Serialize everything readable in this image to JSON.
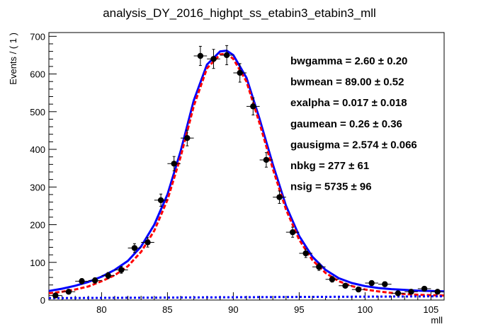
{
  "chart_data": {
    "type": "scatter",
    "title": "analysis_DY_2016_highpt_ss_etabin3_etabin3_mll",
    "xlabel": "mll",
    "ylabel": "Events / ( 1 )",
    "xlim": [
      76,
      106
    ],
    "ylim": [
      0,
      710
    ],
    "xticks": [
      80,
      85,
      90,
      95,
      100,
      105
    ],
    "yticks": [
      0,
      100,
      200,
      300,
      400,
      500,
      600,
      700
    ],
    "grid": false,
    "data_points": {
      "x": [
        76.5,
        77.5,
        78.5,
        79.5,
        80.5,
        81.5,
        82.5,
        83.5,
        84.5,
        85.5,
        86.5,
        87.5,
        88.5,
        89.5,
        90.5,
        91.5,
        92.5,
        93.5,
        94.5,
        95.5,
        96.5,
        97.5,
        98.5,
        99.5,
        100.5,
        101.5,
        102.5,
        103.5,
        104.5,
        105.5
      ],
      "y": [
        12,
        22,
        50,
        52,
        65,
        80,
        138,
        153,
        265,
        362,
        430,
        648,
        640,
        650,
        603,
        514,
        372,
        273,
        180,
        124,
        88,
        55,
        38,
        28,
        45,
        42,
        18,
        22,
        30,
        22
      ],
      "yerr": [
        3.5,
        4.7,
        7.1,
        7.2,
        8.1,
        8.9,
        11.7,
        12.4,
        16.3,
        19.0,
        20.7,
        25.5,
        25.3,
        25.5,
        24.6,
        22.7,
        19.3,
        16.5,
        13.4,
        11.1,
        9.4,
        7.4,
        6.2,
        5.3,
        6.7,
        6.5,
        4.2,
        4.7,
        5.5,
        4.7
      ],
      "bin_width": 1,
      "color": "#000000"
    },
    "series": [
      {
        "type": "total_fit",
        "color": "#0000ff",
        "style": "solid",
        "x": [
          76,
          77,
          78,
          79,
          80,
          81,
          82,
          83,
          84,
          85,
          86,
          87,
          88,
          89,
          89.5,
          90,
          91,
          92,
          93,
          94,
          95,
          96,
          97,
          98,
          99,
          100,
          101,
          102,
          103,
          104,
          105,
          106
        ],
        "y": [
          24,
          30,
          38,
          48,
          62,
          80,
          104,
          142,
          200,
          280,
          395,
          530,
          625,
          660,
          662,
          650,
          590,
          480,
          360,
          250,
          170,
          115,
          80,
          58,
          45,
          37,
          32,
          29,
          27,
          25,
          24,
          23
        ]
      },
      {
        "type": "signal_component",
        "color": "#ff0000",
        "style": "dashed",
        "x": [
          76,
          77,
          78,
          79,
          80,
          81,
          82,
          83,
          84,
          85,
          86,
          87,
          88,
          89,
          89.5,
          90,
          91,
          92,
          93,
          94,
          95,
          96,
          97,
          98,
          99,
          100,
          101,
          102,
          103,
          104,
          105,
          106
        ],
        "y": [
          18,
          22,
          28,
          36,
          50,
          66,
          90,
          128,
          184,
          266,
          380,
          515,
          615,
          652,
          654,
          640,
          580,
          468,
          348,
          240,
          160,
          106,
          72,
          50,
          37,
          28,
          23,
          19,
          16,
          14,
          13,
          12
        ]
      },
      {
        "type": "background_component",
        "color": "#0000ff",
        "style": "dotted",
        "x": [
          76,
          106
        ],
        "y": [
          5,
          10
        ]
      }
    ],
    "fit_results": [
      {
        "text": "bwgamma =  2.60   ± 0.20"
      },
      {
        "text": "bwmean =  89.00   ± 0.52"
      },
      {
        "text": "exalpha =  0.017   ± 0.018"
      },
      {
        "text": "gaumean =  0.26   ± 0.36"
      },
      {
        "text": "gausigma =  2.574   ± 0.066"
      },
      {
        "text": "nbkg =  277   ± 61"
      },
      {
        "text": "nsig =  5735   ± 96"
      }
    ]
  }
}
